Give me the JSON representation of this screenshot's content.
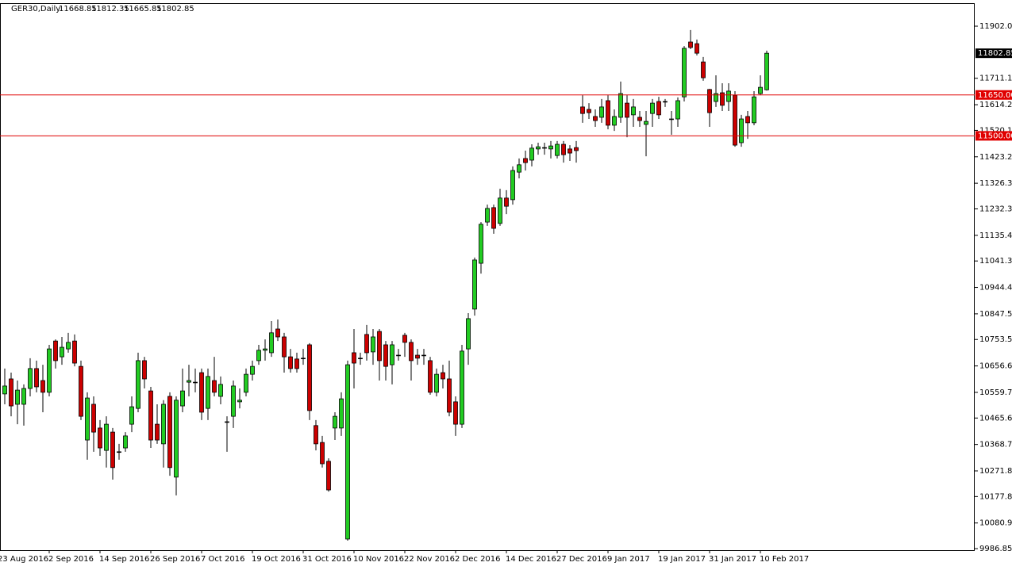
{
  "chart_data": {
    "type": "candlestick",
    "symbol": "GER30,Daily",
    "up_color": "#22cc22",
    "down_color": "#cc0000",
    "outline_color": "#000000",
    "line_color": "#e00000",
    "ylim": [
      9981.2,
      11986.4
    ],
    "yticks": [
      11902.05,
      {
        "value": 11711.1,
        "label": "11711.10"
      },
      {
        "value": 11614.2,
        "label": "11614.20"
      },
      11520.15,
      11423.25,
      11326.35,
      {
        "value": 11232.3,
        "label": "11232.30"
      },
      {
        "value": 11135.4,
        "label": "11135.40"
      },
      11041.35,
      10944.45,
      10847.55,
      {
        "value": 10753.5,
        "label": "10753.50"
      },
      {
        "value": 10656.6,
        "label": "10656.60"
      },
      {
        "value": 10559.7,
        "label": "10559.70"
      },
      10465.65,
      {
        "value": 10368.7,
        "label": "10368.70"
      },
      10271.85,
      {
        "value": 10177.8,
        "label": "10177.80"
      },
      {
        "value": 10080.9,
        "label": "10080.90"
      },
      9986.85
    ],
    "hlines": [
      {
        "value": 11650,
        "label": "11650.00"
      },
      {
        "value": 11500,
        "label": "11500.00"
      }
    ],
    "categories": [
      "23 Aug 2016",
      null,
      null,
      null,
      null,
      null,
      null,
      null,
      "2 Sep 2016",
      null,
      null,
      null,
      null,
      null,
      null,
      null,
      "14 Sep 2016",
      null,
      null,
      null,
      null,
      null,
      null,
      null,
      "26 Sep 2016",
      null,
      null,
      null,
      null,
      null,
      null,
      null,
      "7 Oct 2016",
      null,
      null,
      null,
      null,
      null,
      null,
      null,
      "19 Oct 2016",
      null,
      null,
      null,
      null,
      null,
      null,
      null,
      "31 Oct 2016",
      null,
      null,
      null,
      null,
      null,
      null,
      null,
      "10 Nov 2016",
      null,
      null,
      null,
      null,
      null,
      null,
      null,
      "22 Nov 2016",
      null,
      null,
      null,
      null,
      null,
      null,
      null,
      "2 Dec 2016",
      null,
      null,
      null,
      null,
      null,
      null,
      null,
      "14 Dec 2016",
      null,
      null,
      null,
      null,
      null,
      null,
      null,
      "27 Dec 2016",
      null,
      null,
      null,
      null,
      null,
      null,
      null,
      "9 Jan 2017",
      null,
      null,
      null,
      null,
      null,
      null,
      null,
      "19 Jan 2017",
      null,
      null,
      null,
      null,
      null,
      null,
      null,
      "31 Jan 2017",
      null,
      null,
      null,
      null,
      null,
      null,
      null,
      "10 Feb 2017",
      null
    ],
    "candles": [
      [
        10545,
        10632,
        10531,
        10589
      ],
      [
        10554,
        10647,
        10516,
        10583
      ],
      [
        10609,
        10632,
        10472,
        10510
      ],
      [
        10516,
        10603,
        10443,
        10568
      ],
      [
        10516,
        10589,
        10438,
        10574
      ],
      [
        10574,
        10685,
        10545,
        10647
      ],
      [
        10647,
        10676,
        10560,
        10580
      ],
      [
        10603,
        10661,
        10487,
        10560
      ],
      [
        10560,
        10734,
        10545,
        10719
      ],
      [
        10748,
        10754,
        10647,
        10676
      ],
      [
        10690,
        10763,
        10661,
        10725
      ],
      [
        10719,
        10778,
        10705,
        10743
      ],
      [
        10748,
        10772,
        10655,
        10667
      ],
      [
        10655,
        10676,
        10458,
        10472
      ],
      [
        10385,
        10560,
        10313,
        10539
      ],
      [
        10516,
        10545,
        10342,
        10414
      ],
      [
        10429,
        10458,
        10327,
        10356
      ],
      [
        10347,
        10472,
        10284,
        10443
      ],
      [
        10414,
        10429,
        10240,
        10284
      ],
      [
        10342,
        10371,
        10313,
        10342
      ],
      [
        10356,
        10414,
        10342,
        10400
      ],
      [
        10443,
        10545,
        10414,
        10507
      ],
      [
        10501,
        10705,
        10487,
        10676
      ],
      [
        10676,
        10690,
        10574,
        10609
      ],
      [
        10565,
        10580,
        10356,
        10385
      ],
      [
        10443,
        10516,
        10371,
        10385
      ],
      [
        10371,
        10531,
        10284,
        10516
      ],
      [
        10545,
        10560,
        10254,
        10284
      ],
      [
        10249,
        10545,
        10182,
        10531
      ],
      [
        10510,
        10647,
        10487,
        10565
      ],
      [
        10597,
        10661,
        10545,
        10603
      ],
      [
        10597,
        10647,
        10560,
        10597
      ],
      [
        10632,
        10647,
        10458,
        10487
      ],
      [
        10501,
        10647,
        10458,
        10618
      ],
      [
        10603,
        10690,
        10545,
        10560
      ],
      [
        10545,
        10618,
        10516,
        10589
      ],
      [
        10452,
        10472,
        10342,
        10452
      ],
      [
        10472,
        10603,
        10429,
        10583
      ],
      [
        10525,
        10574,
        10501,
        10531
      ],
      [
        10560,
        10647,
        10545,
        10626
      ],
      [
        10626,
        10676,
        10603,
        10655
      ],
      [
        10676,
        10734,
        10661,
        10714
      ],
      [
        10714,
        10754,
        10676,
        10719
      ],
      [
        10705,
        10821,
        10690,
        10778
      ],
      [
        10792,
        10827,
        10748,
        10763
      ],
      [
        10763,
        10778,
        10632,
        10690
      ],
      [
        10690,
        10719,
        10632,
        10647
      ],
      [
        10682,
        10705,
        10632,
        10647
      ],
      [
        10685,
        10719,
        10661,
        10685
      ],
      [
        10734,
        10740,
        10458,
        10493
      ],
      [
        10438,
        10458,
        10347,
        10371
      ],
      [
        10376,
        10400,
        10284,
        10298
      ],
      [
        10307,
        10318,
        10196,
        10202
      ],
      [
        10429,
        10487,
        10385,
        10472
      ],
      [
        10429,
        10560,
        10400,
        10536
      ],
      [
        10022,
        10676,
        10016,
        10661
      ],
      [
        10705,
        10792,
        10574,
        10667
      ],
      [
        10685,
        10705,
        10661,
        10685
      ],
      [
        10772,
        10807,
        10676,
        10705
      ],
      [
        10708,
        10792,
        10661,
        10763
      ],
      [
        10783,
        10792,
        10603,
        10676
      ],
      [
        10734,
        10748,
        10603,
        10655
      ],
      [
        10661,
        10748,
        10589,
        10734
      ],
      [
        10696,
        10719,
        10676,
        10696
      ],
      [
        10769,
        10778,
        10690,
        10743
      ],
      [
        10743,
        10754,
        10603,
        10676
      ],
      [
        10696,
        10719,
        10661,
        10685
      ],
      [
        10696,
        10719,
        10661,
        10696
      ],
      [
        10676,
        10690,
        10551,
        10560
      ],
      [
        10560,
        10647,
        10545,
        10626
      ],
      [
        10632,
        10661,
        10574,
        10609
      ],
      [
        10609,
        10676,
        10472,
        10487
      ],
      [
        10525,
        10545,
        10400,
        10443
      ],
      [
        10443,
        10734,
        10429,
        10711
      ],
      [
        10719,
        10850,
        10661,
        10830
      ],
      [
        10865,
        11054,
        10841,
        11045
      ],
      [
        11033,
        11184,
        10995,
        11176
      ],
      [
        11184,
        11248,
        11170,
        11234
      ],
      [
        11237,
        11248,
        11141,
        11161
      ],
      [
        11179,
        11306,
        11170,
        11272
      ],
      [
        11272,
        11301,
        11213,
        11242
      ],
      [
        11266,
        11388,
        11248,
        11373
      ],
      [
        11367,
        11417,
        11344,
        11394
      ],
      [
        11417,
        11446,
        11373,
        11402
      ],
      [
        11411,
        11469,
        11388,
        11455
      ],
      [
        11452,
        11475,
        11431,
        11460
      ],
      [
        11457,
        11475,
        11431,
        11457
      ],
      [
        11452,
        11481,
        11417,
        11463
      ],
      [
        11428,
        11481,
        11417,
        11469
      ],
      [
        11469,
        11481,
        11402,
        11431
      ],
      [
        11452,
        11466,
        11408,
        11437
      ],
      [
        11457,
        11481,
        11402,
        11446
      ],
      [
        11606,
        11649,
        11548,
        11582
      ],
      [
        11597,
        11620,
        11562,
        11585
      ],
      [
        11571,
        11597,
        11533,
        11556
      ],
      [
        11568,
        11635,
        11548,
        11606
      ],
      [
        11629,
        11649,
        11524,
        11539
      ],
      [
        11539,
        11597,
        11518,
        11571
      ],
      [
        11568,
        11699,
        11548,
        11655
      ],
      [
        11620,
        11649,
        11495,
        11568
      ],
      [
        11577,
        11635,
        11533,
        11606
      ],
      [
        11568,
        11591,
        11533,
        11556
      ],
      [
        11542,
        11591,
        11425,
        11553
      ],
      [
        11582,
        11635,
        11533,
        11620
      ],
      [
        11626,
        11643,
        11562,
        11577
      ],
      [
        11626,
        11635,
        11606,
        11626
      ],
      [
        11562,
        11591,
        11504,
        11562
      ],
      [
        11562,
        11641,
        11533,
        11629
      ],
      [
        11643,
        11829,
        11626,
        11821
      ],
      [
        11844,
        11888,
        11818,
        11824
      ],
      [
        11838,
        11853,
        11795,
        11803
      ],
      [
        11771,
        11789,
        11702,
        11713
      ],
      [
        11670,
        11672,
        11533,
        11585
      ],
      [
        11626,
        11722,
        11606,
        11655
      ],
      [
        11658,
        11693,
        11591,
        11612
      ],
      [
        11626,
        11693,
        11591,
        11664
      ],
      [
        11649,
        11664,
        11460,
        11466
      ],
      [
        11475,
        11577,
        11460,
        11562
      ],
      [
        11571,
        11591,
        11489,
        11548
      ],
      [
        11548,
        11664,
        11539,
        11643
      ],
      [
        11655,
        11722,
        11649,
        11678
      ],
      [
        11668.85,
        11812.35,
        11665.85,
        11802.85
      ]
    ]
  }
}
